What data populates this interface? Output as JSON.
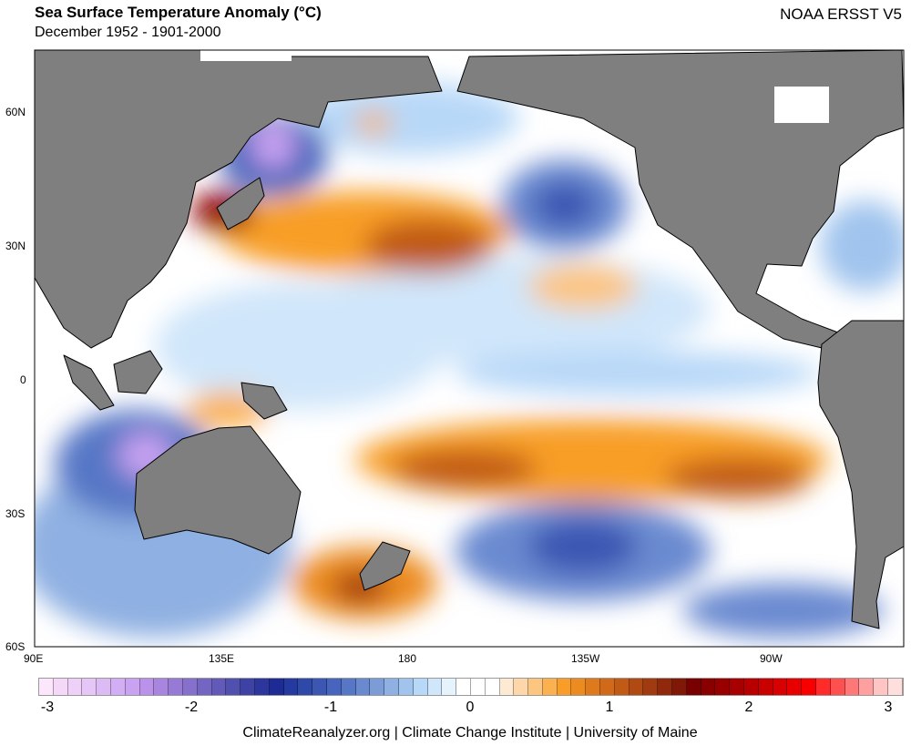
{
  "header": {
    "title": "Sea Surface Temperature Anomaly (°C)",
    "subtitle": "December 1952 - 1901-2000",
    "dataset": "NOAA ERSST V5"
  },
  "map": {
    "lat_labels": [
      "60N",
      "30N",
      "0",
      "30S",
      "60S"
    ],
    "lon_labels": [
      "90E",
      "135E",
      "180",
      "135W",
      "90W"
    ],
    "land_color": "#7f7f7f"
  },
  "colorbar": {
    "min": -3,
    "max": 3,
    "step": 0.1,
    "tick_labels": [
      "-3",
      "-2",
      "-1",
      "0",
      "1",
      "2",
      "3"
    ],
    "colors": [
      "#fbe6fb",
      "#f5d7f8",
      "#eed0f8",
      "#e6c6f6",
      "#dcbaf4",
      "#d3aef5",
      "#c9a2f2",
      "#bb92ea",
      "#a985df",
      "#977ad6",
      "#8570cc",
      "#7366c2",
      "#6259b8",
      "#5050ae",
      "#3e42a4",
      "#2c369c",
      "#1e2b94",
      "#253a9e",
      "#2f49a8",
      "#3b57b2",
      "#4765bc",
      "#5677c6",
      "#6a8ad0",
      "#7c9cd8",
      "#8fb0e2",
      "#a0c4ee",
      "#b8d8f8",
      "#d0e6fa",
      "#e6f2fc",
      "#ffffff",
      "#ffffff",
      "#ffffff",
      "#fee9d2",
      "#fdd7aa",
      "#fcc580",
      "#fbb150",
      "#f89e28",
      "#ec8c20",
      "#de7a1c",
      "#d06a18",
      "#c05a14",
      "#b04a12",
      "#a03a10",
      "#90280c",
      "#801808",
      "#780000",
      "#880000",
      "#980000",
      "#a80000",
      "#b80000",
      "#c80000",
      "#d80000",
      "#e80000",
      "#f80000",
      "#ff2a2a",
      "#ff5050",
      "#ff7878",
      "#ffa0a0",
      "#ffc4c4",
      "#ffdede"
    ]
  },
  "footer": {
    "credit": "ClimateReanalyzer.org | Climate Change Institute | University of Maine"
  }
}
